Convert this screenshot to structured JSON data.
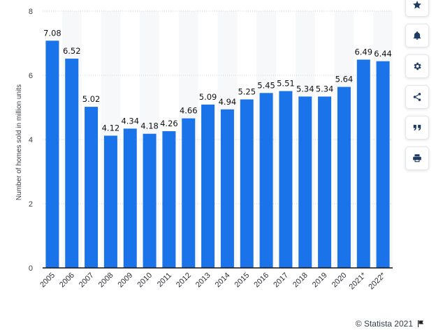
{
  "chart_data": {
    "type": "bar",
    "title": "",
    "xlabel": "",
    "ylabel": "Number of homes sold in million units",
    "ylim": [
      0,
      8
    ],
    "yticks": [
      "0",
      "2",
      "4",
      "6",
      "8"
    ],
    "grid": true,
    "categories": [
      "2005",
      "2006",
      "2007",
      "2008",
      "2009",
      "2010",
      "2011",
      "2012",
      "2013",
      "2014",
      "2015",
      "2016",
      "2017",
      "2018",
      "2019",
      "2020",
      "2021*",
      "2022*"
    ],
    "values": [
      7.08,
      6.52,
      5.02,
      4.12,
      4.34,
      4.18,
      4.26,
      4.66,
      5.09,
      4.94,
      5.25,
      5.45,
      5.51,
      5.34,
      5.34,
      5.64,
      6.49,
      6.44
    ],
    "labels": [
      "7.08",
      "6.52",
      "5.02",
      "4.12",
      "4.34",
      "4.18",
      "4.26",
      "4.66",
      "5.09",
      "4.94",
      "5.25",
      "5.45",
      "5.51",
      "5.34",
      "5.34",
      "5.64",
      "6.49",
      "6.44"
    ],
    "colors": {
      "bar": "#1a73e8",
      "stripe": "#f7f8fa",
      "grid": "#d0d4da",
      "axis": "#111111",
      "text": "#111111"
    }
  },
  "toolbar": {
    "buttons": [
      "star-icon",
      "bell-icon",
      "gear-icon",
      "share-icon",
      "quote-icon",
      "print-icon"
    ]
  },
  "credit": {
    "text": "© Statista 2021"
  }
}
